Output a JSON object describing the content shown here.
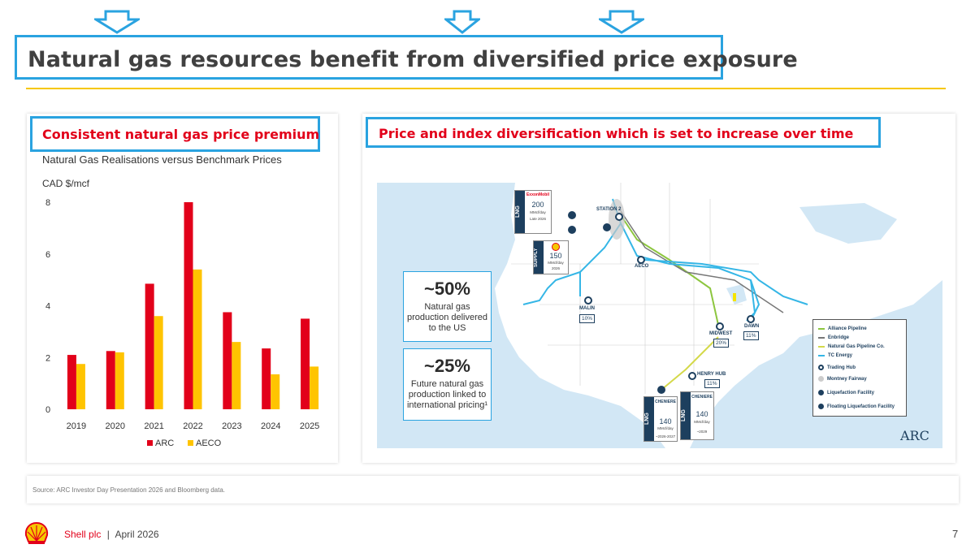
{
  "header": {
    "title": "Natural gas resources benefit from diversified price exposure"
  },
  "left_panel": {
    "section_title": "Consistent natural gas price premium",
    "chart_subtitle": "Natural Gas Realisations versus Benchmark Prices",
    "unit_label": "CAD $/mcf"
  },
  "chart_data": {
    "type": "bar",
    "title": "Natural Gas Realisations versus Benchmark Prices",
    "ylabel": "CAD $/mcf",
    "xlabel": "",
    "categories": [
      "2019",
      "2020",
      "2021",
      "2022",
      "2023",
      "2024",
      "2025"
    ],
    "series": [
      {
        "name": "ARC",
        "color": "#e2001a",
        "values": [
          2.1,
          2.25,
          4.85,
          8.0,
          3.75,
          2.35,
          3.5
        ]
      },
      {
        "name": "AECO",
        "color": "#ffc400",
        "values": [
          1.75,
          2.2,
          3.6,
          5.4,
          2.6,
          1.35,
          1.65
        ]
      }
    ],
    "ylim": [
      0,
      8
    ],
    "yticks": [
      0,
      2,
      4,
      6,
      8
    ],
    "grid": false,
    "legend_position": "bottom-center"
  },
  "right_panel": {
    "section_title": "Price and index diversification which is set to increase over time",
    "stats": [
      {
        "value": "~50%",
        "text_lines": [
          "Natural gas",
          "production delivered",
          "to the US"
        ]
      },
      {
        "value": "~25%",
        "text_lines": [
          "Future natural gas",
          "production linked to",
          "international pricing¹"
        ]
      }
    ],
    "hubs": [
      {
        "name": "STATION 2"
      },
      {
        "name": "AECO"
      },
      {
        "name": "MALIN",
        "pct": "10%"
      },
      {
        "name": "MIDWEST",
        "pct": "20%"
      },
      {
        "name": "DAWN",
        "pct": "11%"
      },
      {
        "name": "HENRY HUB",
        "pct": "11%"
      }
    ],
    "map_legend": [
      {
        "label": "Alliance Pipeline",
        "color": "#8dc63f",
        "kind": "line"
      },
      {
        "label": "Enbridge",
        "color": "#777777",
        "kind": "line"
      },
      {
        "label": "Natural Gas Pipeline Co.",
        "color": "#d4d94a",
        "kind": "line"
      },
      {
        "label": "TC Energy",
        "color": "#35b6e6",
        "kind": "line"
      },
      {
        "label": "Trading Hub",
        "color": "#1d3f5e",
        "kind": "hub"
      },
      {
        "label": "Montney Fairway",
        "color": "#cccccc",
        "kind": "dot"
      },
      {
        "label": "Liquefaction Facility",
        "color": "#1d3f5e",
        "kind": "icon"
      },
      {
        "label": "Floating Liquefaction Facility",
        "color": "#1d3f5e",
        "kind": "icon"
      }
    ],
    "lng_cards": [
      {
        "tag": "LNG",
        "brand": "ExxonMobil",
        "value": "200",
        "unit": "MMcf/day",
        "note": "Late 2026"
      },
      {
        "tag": "SUPPLY",
        "value": "150",
        "unit": "MMcf/day",
        "note": "2026"
      },
      {
        "tag": "LNG",
        "brand": "CHENIERE",
        "value": "140",
        "unit": "MMcf/day",
        "note": "~2026-2027"
      },
      {
        "tag": "LNG",
        "brand": "CHENIERE",
        "value": "140",
        "unit": "MMcf/day",
        "note": "~2029"
      }
    ],
    "map_logo": "ARC"
  },
  "source": "Source: ARC Investor Day Presentation 2026 and Bloomberg data.",
  "footer": {
    "company": "Shell plc",
    "separator": "|",
    "date": "April 2026",
    "page": "7"
  },
  "colors": {
    "accent_blue": "#2aa3e0",
    "shell_red": "#e2001a",
    "shell_yellow": "#f6c700"
  }
}
